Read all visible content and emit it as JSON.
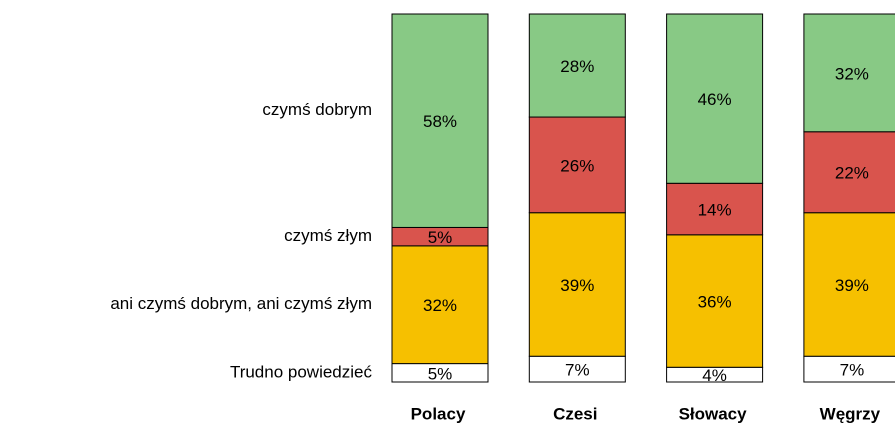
{
  "chart_data": {
    "type": "stacked_bar",
    "categories": [
      "Polacy",
      "Czesi",
      "Słowacy",
      "Węgrzy"
    ],
    "ylim": [
      0,
      100
    ],
    "series": [
      {
        "name": "Trudno powiedzieć",
        "color": "#ffffff",
        "values": [
          5,
          7,
          4,
          7
        ],
        "value_labels": [
          "5%",
          "7%",
          "4%",
          "7%"
        ]
      },
      {
        "name": "ani czymś dobrym, ani czymś złym",
        "color": "#f6c000",
        "values": [
          32,
          39,
          36,
          39
        ],
        "value_labels": [
          "32%",
          "39%",
          "36%",
          "39%"
        ]
      },
      {
        "name": "czymś złym",
        "color": "#d9544d",
        "values": [
          5,
          26,
          14,
          22
        ],
        "value_labels": [
          "5%",
          "26%",
          "14%",
          "22%"
        ]
      },
      {
        "name": "czymś dobrym",
        "color": "#88c985",
        "values": [
          58,
          28,
          46,
          32
        ],
        "value_labels": [
          "58%",
          "28%",
          "46%",
          "32%"
        ]
      }
    ]
  }
}
